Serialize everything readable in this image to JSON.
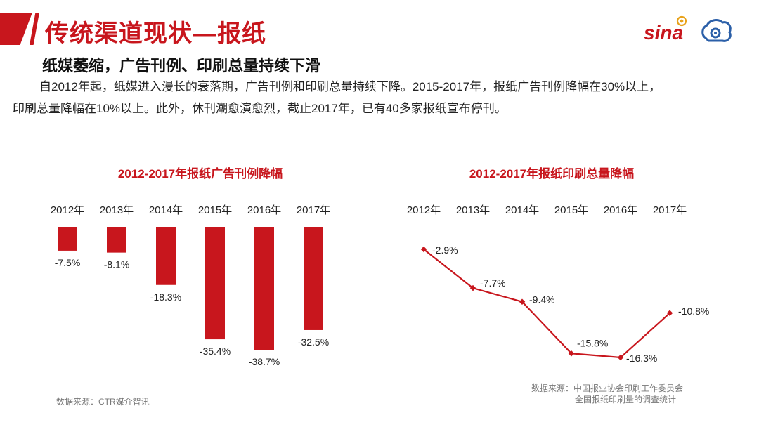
{
  "header": {
    "title": "传统渠道现状—报纸",
    "logos": [
      {
        "name": "sina-logo",
        "text": "sina",
        "color": "#c8161d"
      },
      {
        "name": "weibo-logo",
        "color": "#2b5fa8"
      }
    ]
  },
  "subtitle": "纸媒萎缩，广告刊例、印刷总量持续下滑",
  "body": {
    "line1": "自2012年起，纸媒进入漫长的衰落期，广告刊例和印刷总量持续下降。2015-2017年，报纸广告刊例降幅在30%以上，",
    "line2": "印刷总量降幅在10%以上。此外，休刊潮愈演愈烈，截止2017年，已有40多家报纸宣布停刊。"
  },
  "colors": {
    "accent": "#c8161d",
    "text": "#222222",
    "muted": "#777777"
  },
  "chart_data": [
    {
      "type": "bar",
      "title": "2012-2017年报纸广告刊例降幅",
      "categories": [
        "2012年",
        "2013年",
        "2014年",
        "2015年",
        "2016年",
        "2017年"
      ],
      "values": [
        -7.5,
        -8.1,
        -18.3,
        -35.4,
        -38.7,
        -32.5
      ],
      "labels": [
        "-7.5%",
        "-8.1%",
        "-18.3%",
        "-35.4%",
        "-38.7%",
        "-32.5%"
      ],
      "xlabel": "",
      "ylabel": "",
      "ylim": [
        -40,
        0
      ],
      "grid": false,
      "legend": "none",
      "color": "#c8161d",
      "source": "数据来源：CTR媒介智讯"
    },
    {
      "type": "line",
      "title": "2012-2017年报纸印刷总量降幅",
      "categories": [
        "2012年",
        "2013年",
        "2014年",
        "2015年",
        "2016年",
        "2017年"
      ],
      "values": [
        -2.9,
        -7.7,
        -9.4,
        -15.8,
        -16.3,
        -10.8
      ],
      "labels": [
        "-2.9%",
        "-7.7%",
        "-9.4%",
        "-15.8%",
        "-16.3%",
        "-10.8%"
      ],
      "xlabel": "",
      "ylabel": "",
      "ylim": [
        -17,
        -2
      ],
      "grid": false,
      "legend": "none",
      "color": "#c8161d",
      "source_lines": [
        "数据来源：中国报业协会印刷工作委员会",
        "全国报纸印刷量的调查统计"
      ]
    }
  ]
}
